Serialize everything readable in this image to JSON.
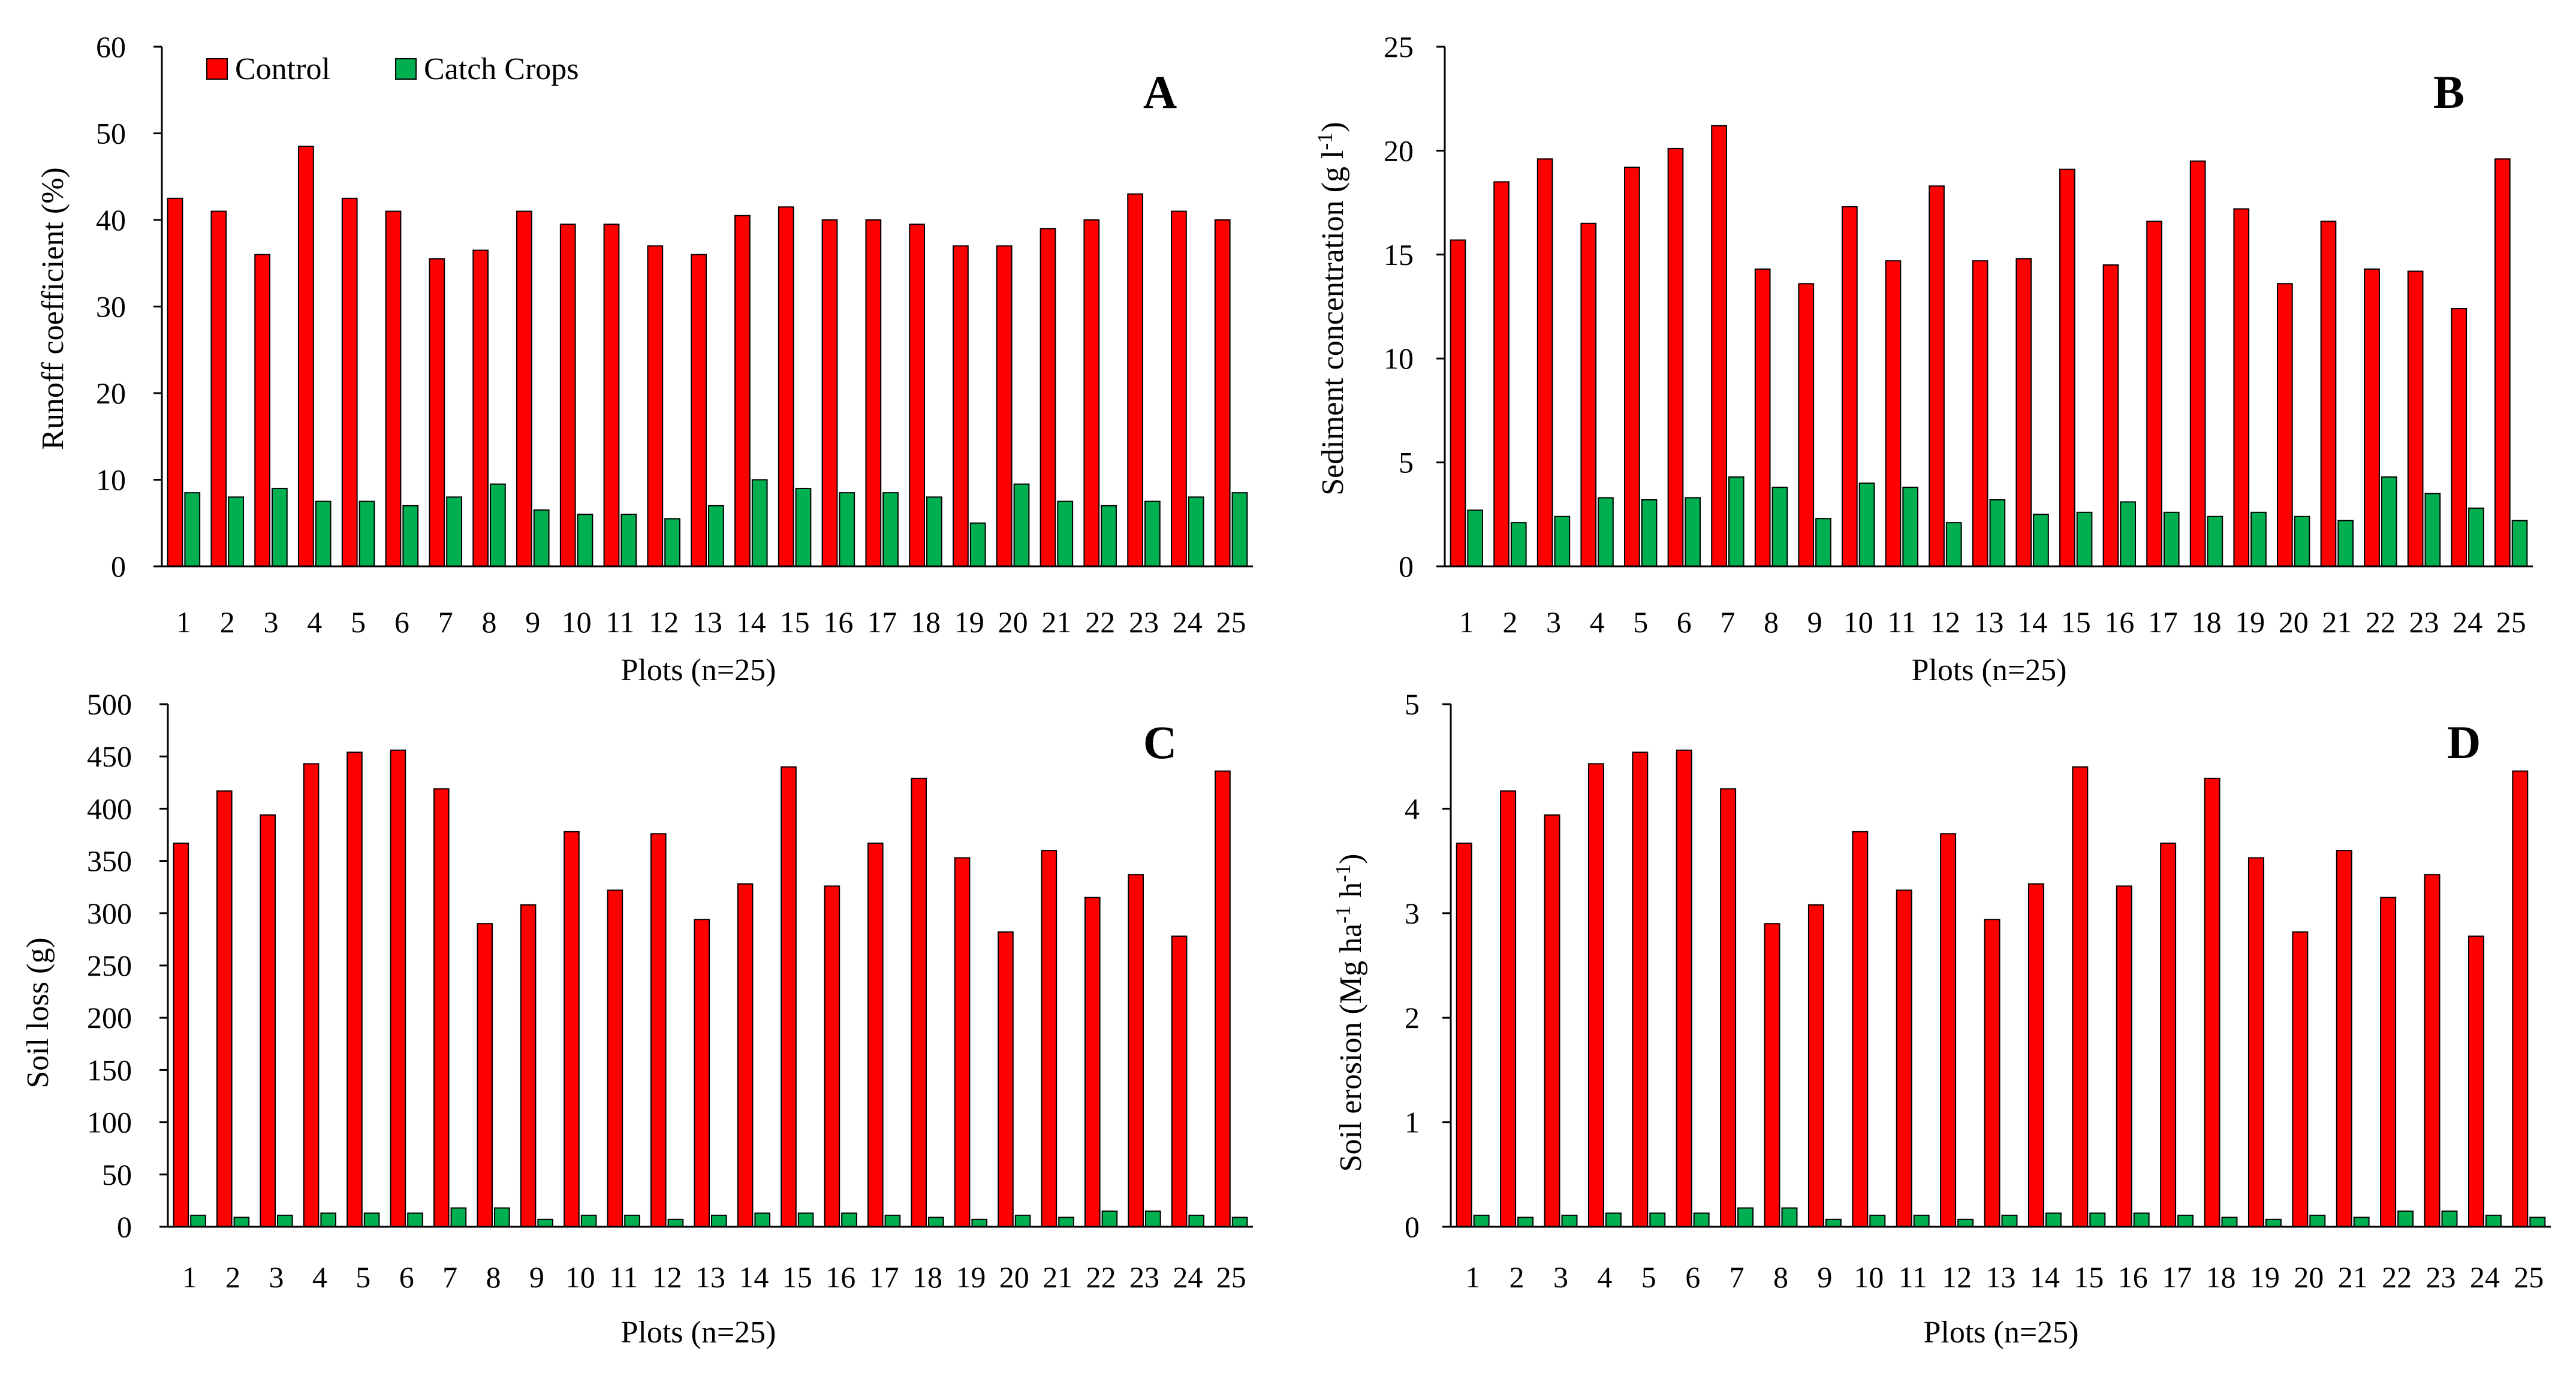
{
  "legend": {
    "items": [
      {
        "label": "Control",
        "color": "#ff0000"
      },
      {
        "label": "Catch Crops",
        "color": "#00b050"
      }
    ]
  },
  "chart_data": [
    {
      "panel": "A",
      "type": "bar",
      "title": "",
      "xlabel": "Plots (n=25)",
      "ylabel": "Runoff coefficient (%)",
      "ylim": [
        0,
        60
      ],
      "yticks": [
        0,
        10,
        20,
        30,
        40,
        50,
        60
      ],
      "categories": [
        "1",
        "2",
        "3",
        "4",
        "5",
        "6",
        "7",
        "8",
        "9",
        "10",
        "11",
        "12",
        "13",
        "14",
        "15",
        "16",
        "17",
        "18",
        "19",
        "20",
        "21",
        "22",
        "23",
        "24",
        "25"
      ],
      "series": [
        {
          "name": "Control",
          "color": "#ff0000",
          "values": [
            42.5,
            41,
            36,
            48.5,
            42.5,
            41,
            35.5,
            36.5,
            41,
            39.5,
            39.5,
            37,
            36,
            40.5,
            41.5,
            40,
            40,
            39.5,
            37,
            37,
            39,
            40,
            43,
            41,
            40
          ]
        },
        {
          "name": "Catch Crops",
          "color": "#00b050",
          "values": [
            8.5,
            8,
            9,
            7.5,
            7.5,
            7,
            8,
            9.5,
            6.5,
            6,
            6,
            5.5,
            7,
            10,
            9,
            8.5,
            8.5,
            8,
            5,
            9.5,
            7.5,
            7,
            7.5,
            8,
            8.5
          ]
        }
      ]
    },
    {
      "panel": "B",
      "type": "bar",
      "title": "",
      "xlabel": "Plots (n=25)",
      "ylabel_main": "Sediment concentration (g l",
      "ylabel_sup": "-1",
      "ylabel_end": ")",
      "ylim": [
        0,
        25
      ],
      "yticks": [
        0,
        5,
        10,
        15,
        20,
        25
      ],
      "categories": [
        "1",
        "2",
        "3",
        "4",
        "5",
        "6",
        "7",
        "8",
        "9",
        "10",
        "11",
        "12",
        "13",
        "14",
        "15",
        "16",
        "17",
        "18",
        "19",
        "20",
        "21",
        "22",
        "23",
        "24",
        "25"
      ],
      "series": [
        {
          "name": "Control",
          "color": "#ff0000",
          "values": [
            15.7,
            18.5,
            19.6,
            16.5,
            19.2,
            20.1,
            21.2,
            14.3,
            13.6,
            17.3,
            14.7,
            18.3,
            14.7,
            14.8,
            19.1,
            14.5,
            16.6,
            19.5,
            17.2,
            13.6,
            16.6,
            14.3,
            14.2,
            12.4,
            19.6
          ]
        },
        {
          "name": "Catch Crops",
          "color": "#00b050",
          "values": [
            2.7,
            2.1,
            2.4,
            3.3,
            3.2,
            3.3,
            4.3,
            3.8,
            2.3,
            4.0,
            3.8,
            2.1,
            3.2,
            2.5,
            2.6,
            3.1,
            2.6,
            2.4,
            2.6,
            2.4,
            2.2,
            4.3,
            3.5,
            2.8,
            2.2
          ]
        }
      ]
    },
    {
      "panel": "C",
      "type": "bar",
      "title": "",
      "xlabel": "Plots (n=25)",
      "ylabel": "Soil loss (g)",
      "ylim": [
        0,
        500
      ],
      "yticks": [
        0,
        50,
        100,
        150,
        200,
        250,
        300,
        350,
        400,
        450,
        500
      ],
      "categories": [
        "1",
        "2",
        "3",
        "4",
        "5",
        "6",
        "7",
        "8",
        "9",
        "10",
        "11",
        "12",
        "13",
        "14",
        "15",
        "16",
        "17",
        "18",
        "19",
        "20",
        "21",
        "22",
        "23",
        "24",
        "25"
      ],
      "series": [
        {
          "name": "Control",
          "color": "#ff0000",
          "values": [
            367,
            417,
            394,
            443,
            454,
            456,
            419,
            290,
            308,
            378,
            322,
            376,
            294,
            328,
            440,
            326,
            367,
            429,
            353,
            282,
            360,
            315,
            337,
            278,
            436
          ]
        },
        {
          "name": "Catch Crops",
          "color": "#00b050",
          "values": [
            11,
            9,
            11,
            13,
            13,
            13,
            18,
            18,
            7,
            11,
            11,
            7,
            11,
            13,
            13,
            13,
            11,
            9,
            7,
            11,
            9,
            15,
            15,
            11,
            9
          ]
        }
      ]
    },
    {
      "panel": "D",
      "type": "bar",
      "title": "",
      "xlabel": "Plots (n=25)",
      "ylabel_main": "Soil erosion (Mg ha",
      "ylabel_sup1": "-1",
      "ylabel_mid": " h",
      "ylabel_sup2": "-1",
      "ylabel_end": ")",
      "ylim": [
        0,
        5
      ],
      "yticks": [
        0,
        1,
        2,
        3,
        4,
        5
      ],
      "categories": [
        "1",
        "2",
        "3",
        "4",
        "5",
        "6",
        "7",
        "8",
        "9",
        "10",
        "11",
        "12",
        "13",
        "14",
        "15",
        "16",
        "17",
        "18",
        "19",
        "20",
        "21",
        "22",
        "23",
        "24",
        "25"
      ],
      "series": [
        {
          "name": "Control",
          "color": "#ff0000",
          "values": [
            3.67,
            4.17,
            3.94,
            4.43,
            4.54,
            4.56,
            4.19,
            2.9,
            3.08,
            3.78,
            3.22,
            3.76,
            2.94,
            3.28,
            4.4,
            3.26,
            3.67,
            4.29,
            3.53,
            2.82,
            3.6,
            3.15,
            3.37,
            2.78,
            4.36
          ]
        },
        {
          "name": "Catch Crops",
          "color": "#00b050",
          "values": [
            0.11,
            0.09,
            0.11,
            0.13,
            0.13,
            0.13,
            0.18,
            0.18,
            0.07,
            0.11,
            0.11,
            0.07,
            0.11,
            0.13,
            0.13,
            0.13,
            0.11,
            0.09,
            0.07,
            0.11,
            0.09,
            0.15,
            0.15,
            0.11,
            0.09
          ]
        }
      ]
    }
  ]
}
